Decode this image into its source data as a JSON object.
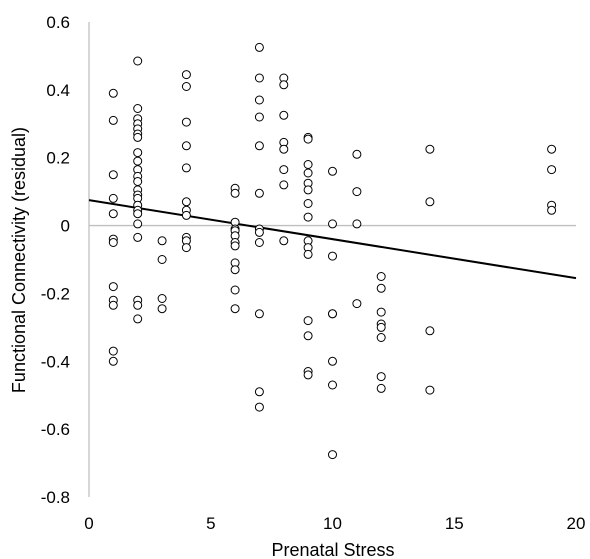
{
  "chart_data": {
    "type": "scatter",
    "title": "",
    "xlabel": "Prenatal Stress",
    "ylabel": "Functional Connectivity (residual)",
    "xlim": [
      0,
      20
    ],
    "ylim": [
      -0.8,
      0.6
    ],
    "x_ticks": [
      0,
      5,
      10,
      15,
      20
    ],
    "y_ticks": [
      0.6,
      0.4,
      0.2,
      0,
      -0.2,
      -0.4,
      -0.6,
      -0.8
    ],
    "x_tick_labels": [
      "0",
      "5",
      "10",
      "15",
      "20"
    ],
    "y_tick_labels": [
      "0.6",
      "0.4",
      "0.2",
      "0",
      "-0.2",
      "-0.4",
      "-0.6",
      "-0.8"
    ],
    "grid": false,
    "legend": "none",
    "colors": {
      "points_stroke": "#000000",
      "points_fill": "#ffffff",
      "trend_line": "#000000",
      "axis_line": "#bfbfbf",
      "zero_line": "#bfbfbf"
    },
    "trend_line": {
      "x": [
        0,
        20
      ],
      "y": [
        0.075,
        -0.155
      ]
    },
    "points": [
      [
        1,
        0.39
      ],
      [
        1,
        0.31
      ],
      [
        1,
        0.15
      ],
      [
        1,
        0.08
      ],
      [
        1,
        0.035
      ],
      [
        1,
        -0.04
      ],
      [
        1,
        -0.05
      ],
      [
        1,
        -0.18
      ],
      [
        1,
        -0.22
      ],
      [
        1,
        -0.235
      ],
      [
        1,
        -0.37
      ],
      [
        1,
        -0.4
      ],
      [
        2,
        0.485
      ],
      [
        2,
        0.345
      ],
      [
        2,
        0.315
      ],
      [
        2,
        0.3
      ],
      [
        2,
        0.285
      ],
      [
        2,
        0.27
      ],
      [
        2,
        0.26
      ],
      [
        2,
        0.215
      ],
      [
        2,
        0.19
      ],
      [
        2,
        0.165
      ],
      [
        2,
        0.145
      ],
      [
        2,
        0.13
      ],
      [
        2,
        0.105
      ],
      [
        2,
        0.09
      ],
      [
        2,
        0.08
      ],
      [
        2,
        0.06
      ],
      [
        2,
        0.045
      ],
      [
        2,
        0.035
      ],
      [
        2,
        0.005
      ],
      [
        2,
        -0.035
      ],
      [
        2,
        -0.22
      ],
      [
        2,
        -0.235
      ],
      [
        2,
        -0.275
      ],
      [
        3,
        -0.045
      ],
      [
        3,
        -0.1
      ],
      [
        3,
        -0.215
      ],
      [
        3,
        -0.245
      ],
      [
        4,
        0.445
      ],
      [
        4,
        0.41
      ],
      [
        4,
        0.305
      ],
      [
        4,
        0.235
      ],
      [
        4,
        0.17
      ],
      [
        4,
        0.07
      ],
      [
        4,
        0.045
      ],
      [
        4,
        0.03
      ],
      [
        4,
        -0.035
      ],
      [
        4,
        -0.045
      ],
      [
        4,
        -0.065
      ],
      [
        6,
        0.11
      ],
      [
        6,
        0.095
      ],
      [
        6,
        0.01
      ],
      [
        6,
        -0.01
      ],
      [
        6,
        -0.015
      ],
      [
        6,
        -0.03
      ],
      [
        6,
        -0.05
      ],
      [
        6,
        -0.06
      ],
      [
        6,
        -0.11
      ],
      [
        6,
        -0.13
      ],
      [
        6,
        -0.19
      ],
      [
        6,
        -0.245
      ],
      [
        7,
        0.525
      ],
      [
        7,
        0.435
      ],
      [
        7,
        0.37
      ],
      [
        7,
        0.32
      ],
      [
        7,
        0.235
      ],
      [
        7,
        0.095
      ],
      [
        7,
        -0.01
      ],
      [
        7,
        -0.02
      ],
      [
        7,
        -0.05
      ],
      [
        7,
        -0.26
      ],
      [
        7,
        -0.49
      ],
      [
        7,
        -0.535
      ],
      [
        8,
        0.435
      ],
      [
        8,
        0.415
      ],
      [
        8,
        0.325
      ],
      [
        8,
        0.245
      ],
      [
        8,
        0.225
      ],
      [
        8,
        0.165
      ],
      [
        8,
        0.12
      ],
      [
        8,
        -0.045
      ],
      [
        9,
        0.26
      ],
      [
        9,
        0.255
      ],
      [
        9,
        0.18
      ],
      [
        9,
        0.155
      ],
      [
        9,
        0.125
      ],
      [
        9,
        0.105
      ],
      [
        9,
        0.065
      ],
      [
        9,
        0.025
      ],
      [
        9,
        -0.045
      ],
      [
        9,
        -0.065
      ],
      [
        9,
        -0.085
      ],
      [
        9,
        -0.28
      ],
      [
        9,
        -0.325
      ],
      [
        9,
        -0.43
      ],
      [
        9,
        -0.44
      ],
      [
        10,
        0.16
      ],
      [
        10,
        0.005
      ],
      [
        10,
        -0.09
      ],
      [
        10,
        -0.26
      ],
      [
        10,
        -0.26
      ],
      [
        10,
        -0.4
      ],
      [
        10,
        -0.47
      ],
      [
        10,
        -0.675
      ],
      [
        11,
        0.21
      ],
      [
        11,
        0.1
      ],
      [
        11,
        0.005
      ],
      [
        11,
        -0.23
      ],
      [
        12,
        -0.15
      ],
      [
        12,
        -0.185
      ],
      [
        12,
        -0.255
      ],
      [
        12,
        -0.29
      ],
      [
        12,
        -0.3
      ],
      [
        12,
        -0.33
      ],
      [
        12,
        -0.445
      ],
      [
        12,
        -0.48
      ],
      [
        14,
        0.225
      ],
      [
        14,
        0.07
      ],
      [
        14,
        -0.31
      ],
      [
        14,
        -0.485
      ],
      [
        19,
        0.225
      ],
      [
        19,
        0.165
      ],
      [
        19,
        0.06
      ],
      [
        19,
        0.045
      ]
    ]
  }
}
